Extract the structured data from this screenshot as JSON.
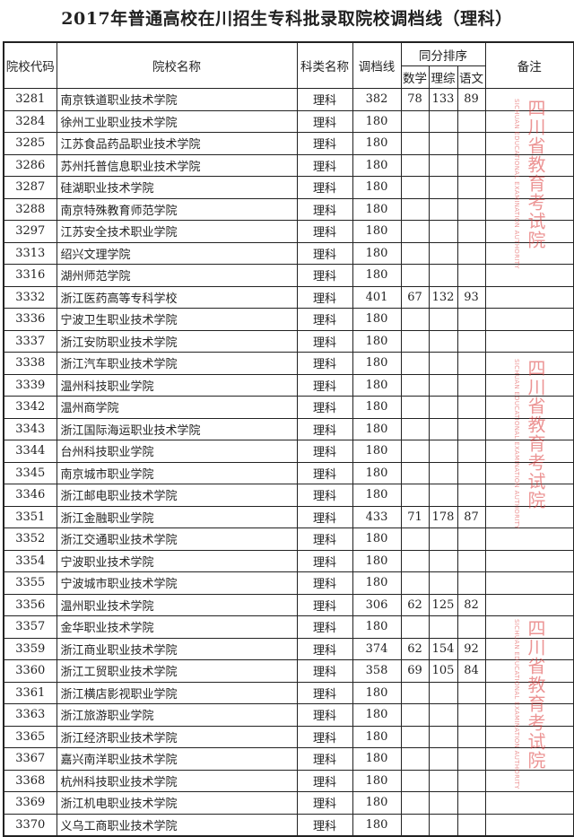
{
  "title": "2017年普通高校在川招生专科批录取院校调档线（理科）",
  "headers": {
    "code": "院校代码",
    "name": "院校名称",
    "category": "科类名称",
    "line": "调档线",
    "tie_group": "同分排序",
    "math": "数学",
    "sci": "理综",
    "chinese": "语文",
    "note": "备注"
  },
  "watermark": {
    "text": "四川省教育考试院",
    "sub": "SICHUAN EDUCATIONAL EXAMINATION AUTHORITY",
    "color": "#dc3c3c"
  },
  "rows": [
    {
      "code": "3281",
      "name": "南京铁道职业技术学院",
      "category": "理科",
      "line": "382",
      "math": "78",
      "sci": "133",
      "chinese": "89",
      "note": ""
    },
    {
      "code": "3284",
      "name": "徐州工业职业技术学院",
      "category": "理科",
      "line": "180",
      "math": "",
      "sci": "",
      "chinese": "",
      "note": ""
    },
    {
      "code": "3285",
      "name": "江苏食品药品职业技术学院",
      "category": "理科",
      "line": "180",
      "math": "",
      "sci": "",
      "chinese": "",
      "note": ""
    },
    {
      "code": "3286",
      "name": "苏州托普信息职业技术学院",
      "category": "理科",
      "line": "180",
      "math": "",
      "sci": "",
      "chinese": "",
      "note": ""
    },
    {
      "code": "3287",
      "name": "硅湖职业技术学院",
      "category": "理科",
      "line": "180",
      "math": "",
      "sci": "",
      "chinese": "",
      "note": ""
    },
    {
      "code": "3288",
      "name": "南京特殊教育师范学院",
      "category": "理科",
      "line": "180",
      "math": "",
      "sci": "",
      "chinese": "",
      "note": ""
    },
    {
      "code": "3297",
      "name": "江苏安全技术职业学院",
      "category": "理科",
      "line": "180",
      "math": "",
      "sci": "",
      "chinese": "",
      "note": ""
    },
    {
      "code": "3313",
      "name": "绍兴文理学院",
      "category": "理科",
      "line": "180",
      "math": "",
      "sci": "",
      "chinese": "",
      "note": ""
    },
    {
      "code": "3316",
      "name": "湖州师范学院",
      "category": "理科",
      "line": "180",
      "math": "",
      "sci": "",
      "chinese": "",
      "note": ""
    },
    {
      "code": "3332",
      "name": "浙江医药高等专科学校",
      "category": "理科",
      "line": "401",
      "math": "67",
      "sci": "132",
      "chinese": "93",
      "note": ""
    },
    {
      "code": "3336",
      "name": "宁波卫生职业技术学院",
      "category": "理科",
      "line": "180",
      "math": "",
      "sci": "",
      "chinese": "",
      "note": ""
    },
    {
      "code": "3337",
      "name": "浙江安防职业技术学院",
      "category": "理科",
      "line": "180",
      "math": "",
      "sci": "",
      "chinese": "",
      "note": ""
    },
    {
      "code": "3338",
      "name": "浙江汽车职业技术学院",
      "category": "理科",
      "line": "180",
      "math": "",
      "sci": "",
      "chinese": "",
      "note": ""
    },
    {
      "code": "3339",
      "name": "温州科技职业学院",
      "category": "理科",
      "line": "180",
      "math": "",
      "sci": "",
      "chinese": "",
      "note": ""
    },
    {
      "code": "3342",
      "name": "温州商学院",
      "category": "理科",
      "line": "180",
      "math": "",
      "sci": "",
      "chinese": "",
      "note": ""
    },
    {
      "code": "3343",
      "name": "浙江国际海运职业技术学院",
      "category": "理科",
      "line": "180",
      "math": "",
      "sci": "",
      "chinese": "",
      "note": ""
    },
    {
      "code": "3344",
      "name": "台州科技职业学院",
      "category": "理科",
      "line": "180",
      "math": "",
      "sci": "",
      "chinese": "",
      "note": ""
    },
    {
      "code": "3345",
      "name": "南京城市职业学院",
      "category": "理科",
      "line": "180",
      "math": "",
      "sci": "",
      "chinese": "",
      "note": ""
    },
    {
      "code": "3346",
      "name": "浙江邮电职业技术学院",
      "category": "理科",
      "line": "180",
      "math": "",
      "sci": "",
      "chinese": "",
      "note": ""
    },
    {
      "code": "3351",
      "name": "浙江金融职业学院",
      "category": "理科",
      "line": "433",
      "math": "71",
      "sci": "178",
      "chinese": "87",
      "note": ""
    },
    {
      "code": "3352",
      "name": "浙江交通职业技术学院",
      "category": "理科",
      "line": "180",
      "math": "",
      "sci": "",
      "chinese": "",
      "note": ""
    },
    {
      "code": "3354",
      "name": "宁波职业技术学院",
      "category": "理科",
      "line": "180",
      "math": "",
      "sci": "",
      "chinese": "",
      "note": ""
    },
    {
      "code": "3355",
      "name": "宁波城市职业技术学院",
      "category": "理科",
      "line": "180",
      "math": "",
      "sci": "",
      "chinese": "",
      "note": ""
    },
    {
      "code": "3356",
      "name": "温州职业技术学院",
      "category": "理科",
      "line": "306",
      "math": "62",
      "sci": "125",
      "chinese": "82",
      "note": ""
    },
    {
      "code": "3357",
      "name": "金华职业技术学院",
      "category": "理科",
      "line": "180",
      "math": "",
      "sci": "",
      "chinese": "",
      "note": ""
    },
    {
      "code": "3359",
      "name": "浙江商业职业技术学院",
      "category": "理科",
      "line": "374",
      "math": "62",
      "sci": "154",
      "chinese": "92",
      "note": ""
    },
    {
      "code": "3360",
      "name": "浙江工贸职业技术学院",
      "category": "理科",
      "line": "358",
      "math": "69",
      "sci": "105",
      "chinese": "84",
      "note": ""
    },
    {
      "code": "3361",
      "name": "浙江横店影视职业学院",
      "category": "理科",
      "line": "180",
      "math": "",
      "sci": "",
      "chinese": "",
      "note": ""
    },
    {
      "code": "3363",
      "name": "浙江旅游职业学院",
      "category": "理科",
      "line": "180",
      "math": "",
      "sci": "",
      "chinese": "",
      "note": ""
    },
    {
      "code": "3365",
      "name": "浙江经济职业技术学院",
      "category": "理科",
      "line": "180",
      "math": "",
      "sci": "",
      "chinese": "",
      "note": ""
    },
    {
      "code": "3367",
      "name": "嘉兴南洋职业技术学院",
      "category": "理科",
      "line": "180",
      "math": "",
      "sci": "",
      "chinese": "",
      "note": ""
    },
    {
      "code": "3368",
      "name": "杭州科技职业技术学院",
      "category": "理科",
      "line": "180",
      "math": "",
      "sci": "",
      "chinese": "",
      "note": ""
    },
    {
      "code": "3369",
      "name": "浙江机电职业技术学院",
      "category": "理科",
      "line": "180",
      "math": "",
      "sci": "",
      "chinese": "",
      "note": ""
    },
    {
      "code": "3370",
      "name": "义乌工商职业技术学院",
      "category": "理科",
      "line": "180",
      "math": "",
      "sci": "",
      "chinese": "",
      "note": ""
    }
  ]
}
